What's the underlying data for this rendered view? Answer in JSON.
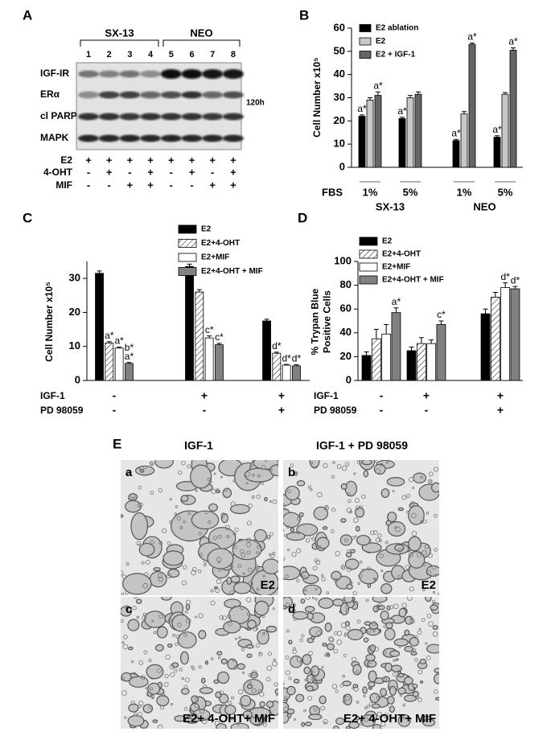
{
  "panels": {
    "blot": {
      "panel": "A",
      "groups": [
        {
          "name": "SX-13",
          "lanes": [
            "1",
            "2",
            "3",
            "4"
          ]
        },
        {
          "name": "NEO",
          "lanes": [
            "5",
            "6",
            "7",
            "8"
          ]
        }
      ],
      "bands": [
        "IGF-IR",
        "ERα",
        "cl PARP",
        "MAPK"
      ],
      "note": "120h",
      "treatments": [
        {
          "name": "E2",
          "values": [
            "+",
            "+",
            "+",
            "+",
            "+",
            "+",
            "+",
            "+"
          ]
        },
        {
          "name": "4-OHT",
          "values": [
            "-",
            "+",
            "-",
            "+",
            "-",
            "+",
            "-",
            "+"
          ]
        },
        {
          "name": "MIF",
          "values": [
            "-",
            "-",
            "+",
            "+",
            "-",
            "-",
            "+",
            "+"
          ]
        }
      ]
    },
    "micrographs": {
      "panel": "E",
      "columns": [
        "IGF-1",
        "IGF-1 + PD 98059"
      ],
      "images": [
        {
          "letter": "a",
          "caption": "E2"
        },
        {
          "letter": "b",
          "caption": "E2"
        },
        {
          "letter": "c",
          "caption": "E2+ 4-OHT+ MIF"
        },
        {
          "letter": "d",
          "caption": "E2+ 4-OHT+ MIF"
        }
      ]
    }
  },
  "chart_data": [
    {
      "type": "bar",
      "panel": "B",
      "y_label": "Cell Number x10⁵",
      "x_label": "FBS",
      "categories": [
        "1%",
        "5%",
        "1%",
        "5%"
      ],
      "group_labels": [
        "SX-13",
        "NEO"
      ],
      "ylim": [
        0,
        60
      ],
      "yticks": [
        0,
        10,
        20,
        30,
        40,
        50,
        60
      ],
      "legend": "upper left",
      "series": [
        {
          "name": "E2 ablation",
          "color": "#000000",
          "values": [
            22,
            21,
            11.5,
            13
          ],
          "errors": [
            0.6,
            0.6,
            0.5,
            0.6
          ],
          "labels": [
            "a*",
            "a*",
            "a*",
            "a*"
          ]
        },
        {
          "name": "E2",
          "color": "#c8c8c8",
          "values": [
            29,
            30,
            23,
            31.5
          ],
          "errors": [
            1,
            1,
            1,
            0.7
          ]
        },
        {
          "name": "E2 + IGF-1",
          "color": "#666666",
          "values": [
            31,
            31.5,
            53,
            50.5
          ],
          "errors": [
            1.5,
            1,
            0.6,
            1
          ],
          "labels": [
            "a*",
            null,
            "a*",
            "a*"
          ]
        }
      ]
    },
    {
      "type": "bar",
      "panel": "C",
      "y_label": "Cell Number x10⁵",
      "conditions": [
        {
          "name": "IGF-1",
          "values": [
            "-",
            "+",
            "+"
          ]
        },
        {
          "name": "PD 98059",
          "values": [
            "-",
            "-",
            "+"
          ]
        }
      ],
      "ylim": [
        0,
        35
      ],
      "yticks": [
        0,
        10,
        20,
        30
      ],
      "legend": "upper right",
      "series": [
        {
          "name": "E2",
          "color": "#000000",
          "values": [
            31.5,
            33.5,
            17.5
          ],
          "errors": [
            0.7,
            0.7,
            0.5
          ]
        },
        {
          "name": "E2+4-OHT",
          "color": "#ffffff",
          "hatch": true,
          "values": [
            11,
            26,
            8
          ],
          "errors": [
            0.4,
            0.7,
            0.3
          ],
          "labels": [
            "a*",
            null,
            "d*"
          ]
        },
        {
          "name": "E2+MIF",
          "color": "#ffffff",
          "values": [
            9.5,
            12.5,
            4.5
          ],
          "errors": [
            0.3,
            0.6,
            0.2
          ],
          "labels": [
            "a*",
            "c*",
            "d*"
          ]
        },
        {
          "name": "E2+4-OHT + MIF",
          "color": "#808080",
          "values": [
            5,
            10.5,
            4.3
          ],
          "errors": [
            0.3,
            0.4,
            0.3
          ],
          "labels": [
            [
              "b*",
              "a*"
            ],
            "c*",
            "d*"
          ]
        }
      ]
    },
    {
      "type": "bar",
      "panel": "D",
      "y_label": [
        "% Trypan Blue",
        "Positive Cells"
      ],
      "conditions": [
        {
          "name": "IGF-1",
          "values": [
            "-",
            "+",
            "+"
          ]
        },
        {
          "name": "PD 98059",
          "values": [
            "-",
            "-",
            "+"
          ]
        }
      ],
      "ylim": [
        0,
        100
      ],
      "yticks": [
        0,
        20,
        40,
        60,
        80,
        100
      ],
      "legend": "upper left",
      "series": [
        {
          "name": "E2",
          "color": "#000000",
          "values": [
            21,
            25,
            56
          ],
          "errors": [
            3,
            3,
            4
          ]
        },
        {
          "name": "E2+4-OHT",
          "color": "#ffffff",
          "hatch": true,
          "values": [
            35,
            31,
            70
          ],
          "errors": [
            8,
            5,
            4
          ]
        },
        {
          "name": "E2+MIF",
          "color": "#ffffff",
          "values": [
            39,
            31,
            78
          ],
          "errors": [
            8,
            3,
            4
          ],
          "labels": [
            null,
            null,
            "d*"
          ]
        },
        {
          "name": "E2+4-OHT + MIF",
          "color": "#808080",
          "values": [
            57,
            47,
            77
          ],
          "errors": [
            4,
            3,
            2
          ],
          "labels": [
            "a*",
            "c*",
            "d*"
          ]
        }
      ]
    }
  ]
}
